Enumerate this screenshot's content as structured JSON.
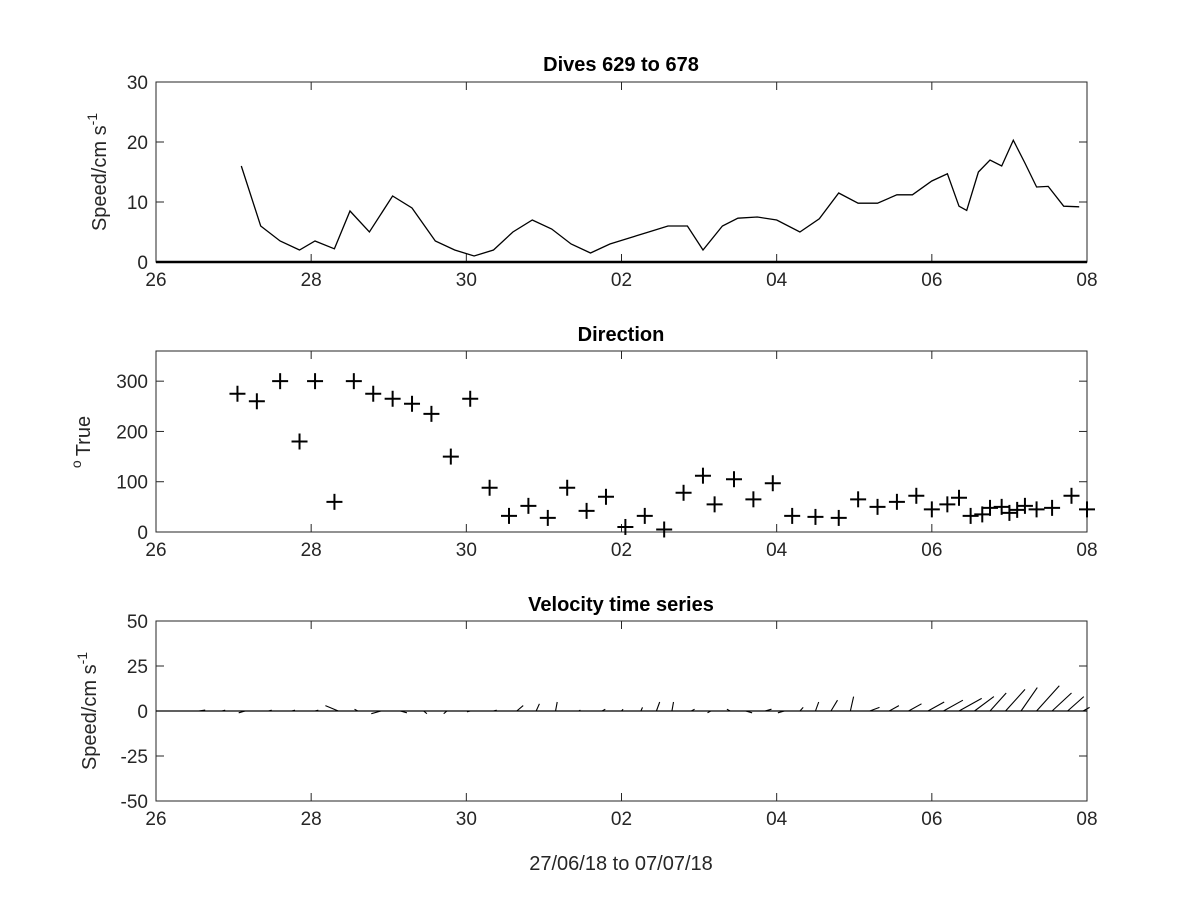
{
  "chart_data": [
    {
      "type": "line",
      "title": "Dives 629 to 678",
      "ylabel": "Speed/cm s",
      "ylabel_sup": "-1",
      "xlim": [
        "26",
        "08"
      ],
      "ylim": [
        0,
        30
      ],
      "xticks": [
        {
          "d": 0,
          "label": "26"
        },
        {
          "d": 2,
          "label": "28"
        },
        {
          "d": 4,
          "label": "30"
        },
        {
          "d": 6,
          "label": "02"
        },
        {
          "d": 8,
          "label": "04"
        },
        {
          "d": 10,
          "label": "06"
        },
        {
          "d": 12,
          "label": "08"
        }
      ],
      "yticks": [
        0,
        10,
        20,
        30
      ],
      "x_days": [
        1.1,
        1.35,
        1.6,
        1.85,
        2.05,
        2.3,
        2.5,
        2.75,
        3.05,
        3.3,
        3.6,
        3.85,
        4.1,
        4.35,
        4.6,
        4.85,
        5.1,
        5.35,
        5.6,
        5.85,
        6.1,
        6.35,
        6.6,
        6.85,
        7.05,
        7.3,
        7.5,
        7.75,
        8.0,
        8.3,
        8.55,
        8.8,
        9.05,
        9.3,
        9.55,
        9.75,
        10.0,
        10.2,
        10.35,
        10.45,
        10.6,
        10.75,
        10.9,
        11.05,
        11.2,
        11.35,
        11.5,
        11.7,
        11.9
      ],
      "values": [
        16,
        6,
        3.5,
        2,
        3.5,
        2.2,
        8.5,
        5,
        11,
        9,
        3.5,
        2,
        1,
        2,
        5,
        7,
        5.5,
        3,
        1.5,
        3,
        4,
        5,
        6,
        6,
        2,
        6,
        7.3,
        7.5,
        7,
        5,
        7.2,
        11.5,
        9.8,
        9.8,
        11.2,
        11.2,
        13.5,
        14.7,
        9.3,
        8.6,
        15,
        17,
        16,
        20.3,
        16.5,
        12.5,
        12.6,
        9.3,
        9.2
      ],
      "baseline": 0
    },
    {
      "type": "scatter",
      "title": "Direction",
      "ylabel": "True",
      "ylabel_sup": "o",
      "xlim": [
        "26",
        "08"
      ],
      "ylim": [
        0,
        360
      ],
      "xticks": [
        {
          "d": 0,
          "label": "26"
        },
        {
          "d": 2,
          "label": "28"
        },
        {
          "d": 4,
          "label": "30"
        },
        {
          "d": 6,
          "label": "02"
        },
        {
          "d": 8,
          "label": "04"
        },
        {
          "d": 10,
          "label": "06"
        },
        {
          "d": 12,
          "label": "08"
        }
      ],
      "yticks": [
        0,
        100,
        200,
        300
      ],
      "x_days": [
        1.05,
        1.3,
        1.6,
        1.85,
        2.05,
        2.3,
        2.55,
        2.8,
        3.05,
        3.3,
        3.55,
        3.8,
        4.05,
        4.3,
        4.55,
        4.8,
        5.05,
        5.3,
        5.55,
        5.8,
        6.05,
        6.3,
        6.55,
        6.8,
        7.05,
        7.2,
        7.45,
        7.7,
        7.95,
        8.2,
        8.5,
        8.8,
        9.05,
        9.3,
        9.55,
        9.8,
        10.0,
        10.2,
        10.35,
        10.5,
        10.65,
        10.75,
        10.9,
        11.0,
        11.1,
        11.2,
        11.35,
        11.55,
        11.8,
        12.0
      ],
      "values": [
        275,
        260,
        300,
        180,
        300,
        60,
        300,
        275,
        265,
        255,
        235,
        150,
        265,
        88,
        32,
        52,
        28,
        88,
        42,
        70,
        10,
        32,
        5,
        78,
        112,
        55,
        105,
        65,
        97,
        32,
        30,
        28,
        65,
        50,
        60,
        72,
        45,
        55,
        68,
        32,
        35,
        48,
        50,
        38,
        44,
        52,
        45,
        48,
        72,
        45
      ]
    },
    {
      "type": "line",
      "subtype": "stick-vectors",
      "title": "Velocity time series",
      "ylabel": "Speed/cm s",
      "ylabel_sup": "-1",
      "xlabel": "27/06/18 to 07/07/18",
      "xlim": [
        "26",
        "08"
      ],
      "ylim": [
        -50,
        50
      ],
      "xticks": [
        {
          "d": 0,
          "label": "26"
        },
        {
          "d": 2,
          "label": "28"
        },
        {
          "d": 4,
          "label": "30"
        },
        {
          "d": 6,
          "label": "02"
        },
        {
          "d": 8,
          "label": "04"
        },
        {
          "d": 10,
          "label": "06"
        },
        {
          "d": 12,
          "label": "08"
        }
      ],
      "yticks": [
        -50,
        -25,
        0,
        25,
        50
      ],
      "x_days": [
        0.55,
        0.85,
        1.15,
        1.45,
        1.75,
        2.05,
        2.35,
        2.6,
        2.9,
        3.15,
        3.45,
        3.75,
        4.05,
        4.35,
        4.65,
        4.9,
        5.15,
        5.45,
        5.75,
        6.0,
        6.25,
        6.45,
        6.65,
        6.9,
        7.15,
        7.4,
        7.6,
        7.85,
        8.1,
        8.3,
        8.5,
        8.7,
        8.95,
        9.2,
        9.45,
        9.7,
        9.95,
        10.15,
        10.35,
        10.55,
        10.75,
        10.95,
        11.15,
        11.35,
        11.55,
        11.75,
        11.95
      ],
      "u": [
        2,
        1,
        -2,
        1,
        1,
        1,
        -4,
        -1,
        -3,
        2,
        1,
        -1,
        -1,
        1,
        2,
        1,
        0.5,
        0.5,
        1,
        0.5,
        0.5,
        1,
        0.5,
        1,
        -1,
        -1,
        2,
        2,
        -2,
        1,
        1,
        2,
        1,
        3,
        3,
        4,
        5,
        6,
        7,
        6,
        5,
        6,
        5,
        7,
        6,
        5,
        2
      ],
      "v": [
        0.5,
        0.5,
        -1,
        0.5,
        0.5,
        0.5,
        3,
        1,
        -1.5,
        -1,
        -1.5,
        -1.5,
        -0.5,
        0.5,
        3,
        4,
        5,
        0.5,
        1,
        1,
        2,
        5,
        5,
        1,
        -1,
        1,
        -1,
        1,
        -1,
        2,
        5,
        6,
        8,
        2,
        3,
        4,
        5,
        6,
        7,
        8,
        10,
        12,
        13,
        14,
        10,
        8,
        2
      ]
    }
  ]
}
